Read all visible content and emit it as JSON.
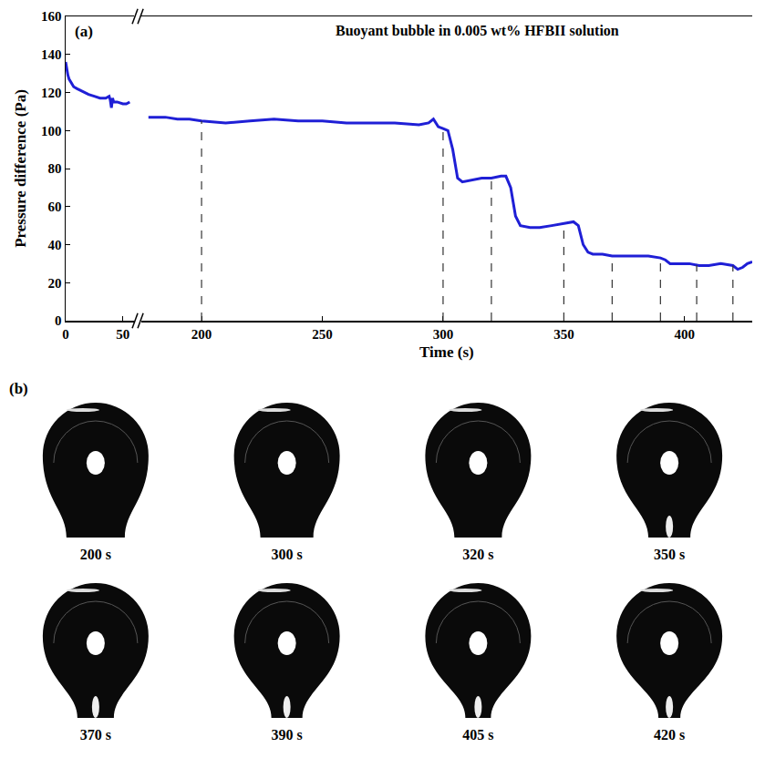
{
  "chart_data": {
    "type": "line",
    "title": "Buoyant bubble in 0.005 wt% HFBII solution",
    "panel_label": "(a)",
    "x_label": "Time (s)",
    "y_label": "Pressure difference (Pa)",
    "x": [
      0,
      1,
      2,
      3,
      5,
      7,
      10,
      13,
      16,
      20,
      25,
      30,
      35,
      38,
      39,
      40,
      41,
      42,
      45,
      50,
      53,
      56,
      100,
      178,
      185,
      190,
      195,
      200,
      210,
      220,
      230,
      240,
      250,
      260,
      270,
      280,
      290,
      294,
      296,
      298,
      300,
      302,
      304,
      306,
      308,
      312,
      316,
      320,
      324,
      326,
      328,
      330,
      332,
      336,
      340,
      345,
      350,
      354,
      356,
      358,
      360,
      362,
      366,
      370,
      375,
      380,
      385,
      390,
      392,
      394,
      396,
      398,
      402,
      406,
      410,
      415,
      420,
      422,
      424,
      426,
      428
    ],
    "values": [
      136,
      132,
      129,
      127,
      125,
      123,
      122,
      121,
      120,
      119,
      118,
      117,
      117,
      118,
      116,
      112,
      117,
      115,
      115,
      114,
      114,
      115,
      null,
      107,
      107,
      106,
      106,
      105,
      104,
      105,
      106,
      105,
      105,
      104,
      104,
      104,
      103,
      104,
      106,
      102,
      101,
      100,
      90,
      75,
      73,
      74,
      75,
      75,
      76,
      76,
      70,
      55,
      50,
      49,
      49,
      50,
      51,
      52,
      50,
      40,
      36,
      35,
      35,
      34,
      34,
      34,
      34,
      33,
      32,
      30,
      30,
      30,
      30,
      29,
      29,
      30,
      29,
      27,
      28,
      30,
      31
    ],
    "color": "#1f1fd6",
    "xlim": [
      [
        0,
        60
      ],
      [
        175,
        428
      ]
    ],
    "xticks": [
      0,
      50,
      200,
      250,
      300,
      350,
      400
    ],
    "ylim": [
      0,
      160
    ],
    "yticks": [
      0,
      20,
      40,
      60,
      80,
      100,
      120,
      140,
      160
    ],
    "marked_times": [
      200,
      300,
      320,
      350,
      370,
      390,
      405,
      420
    ],
    "grid": false
  },
  "images": {
    "panel_label": "(b)",
    "frames": [
      "200 s",
      "300 s",
      "320 s",
      "350 s",
      "370 s",
      "390 s",
      "405 s",
      "420 s"
    ]
  }
}
